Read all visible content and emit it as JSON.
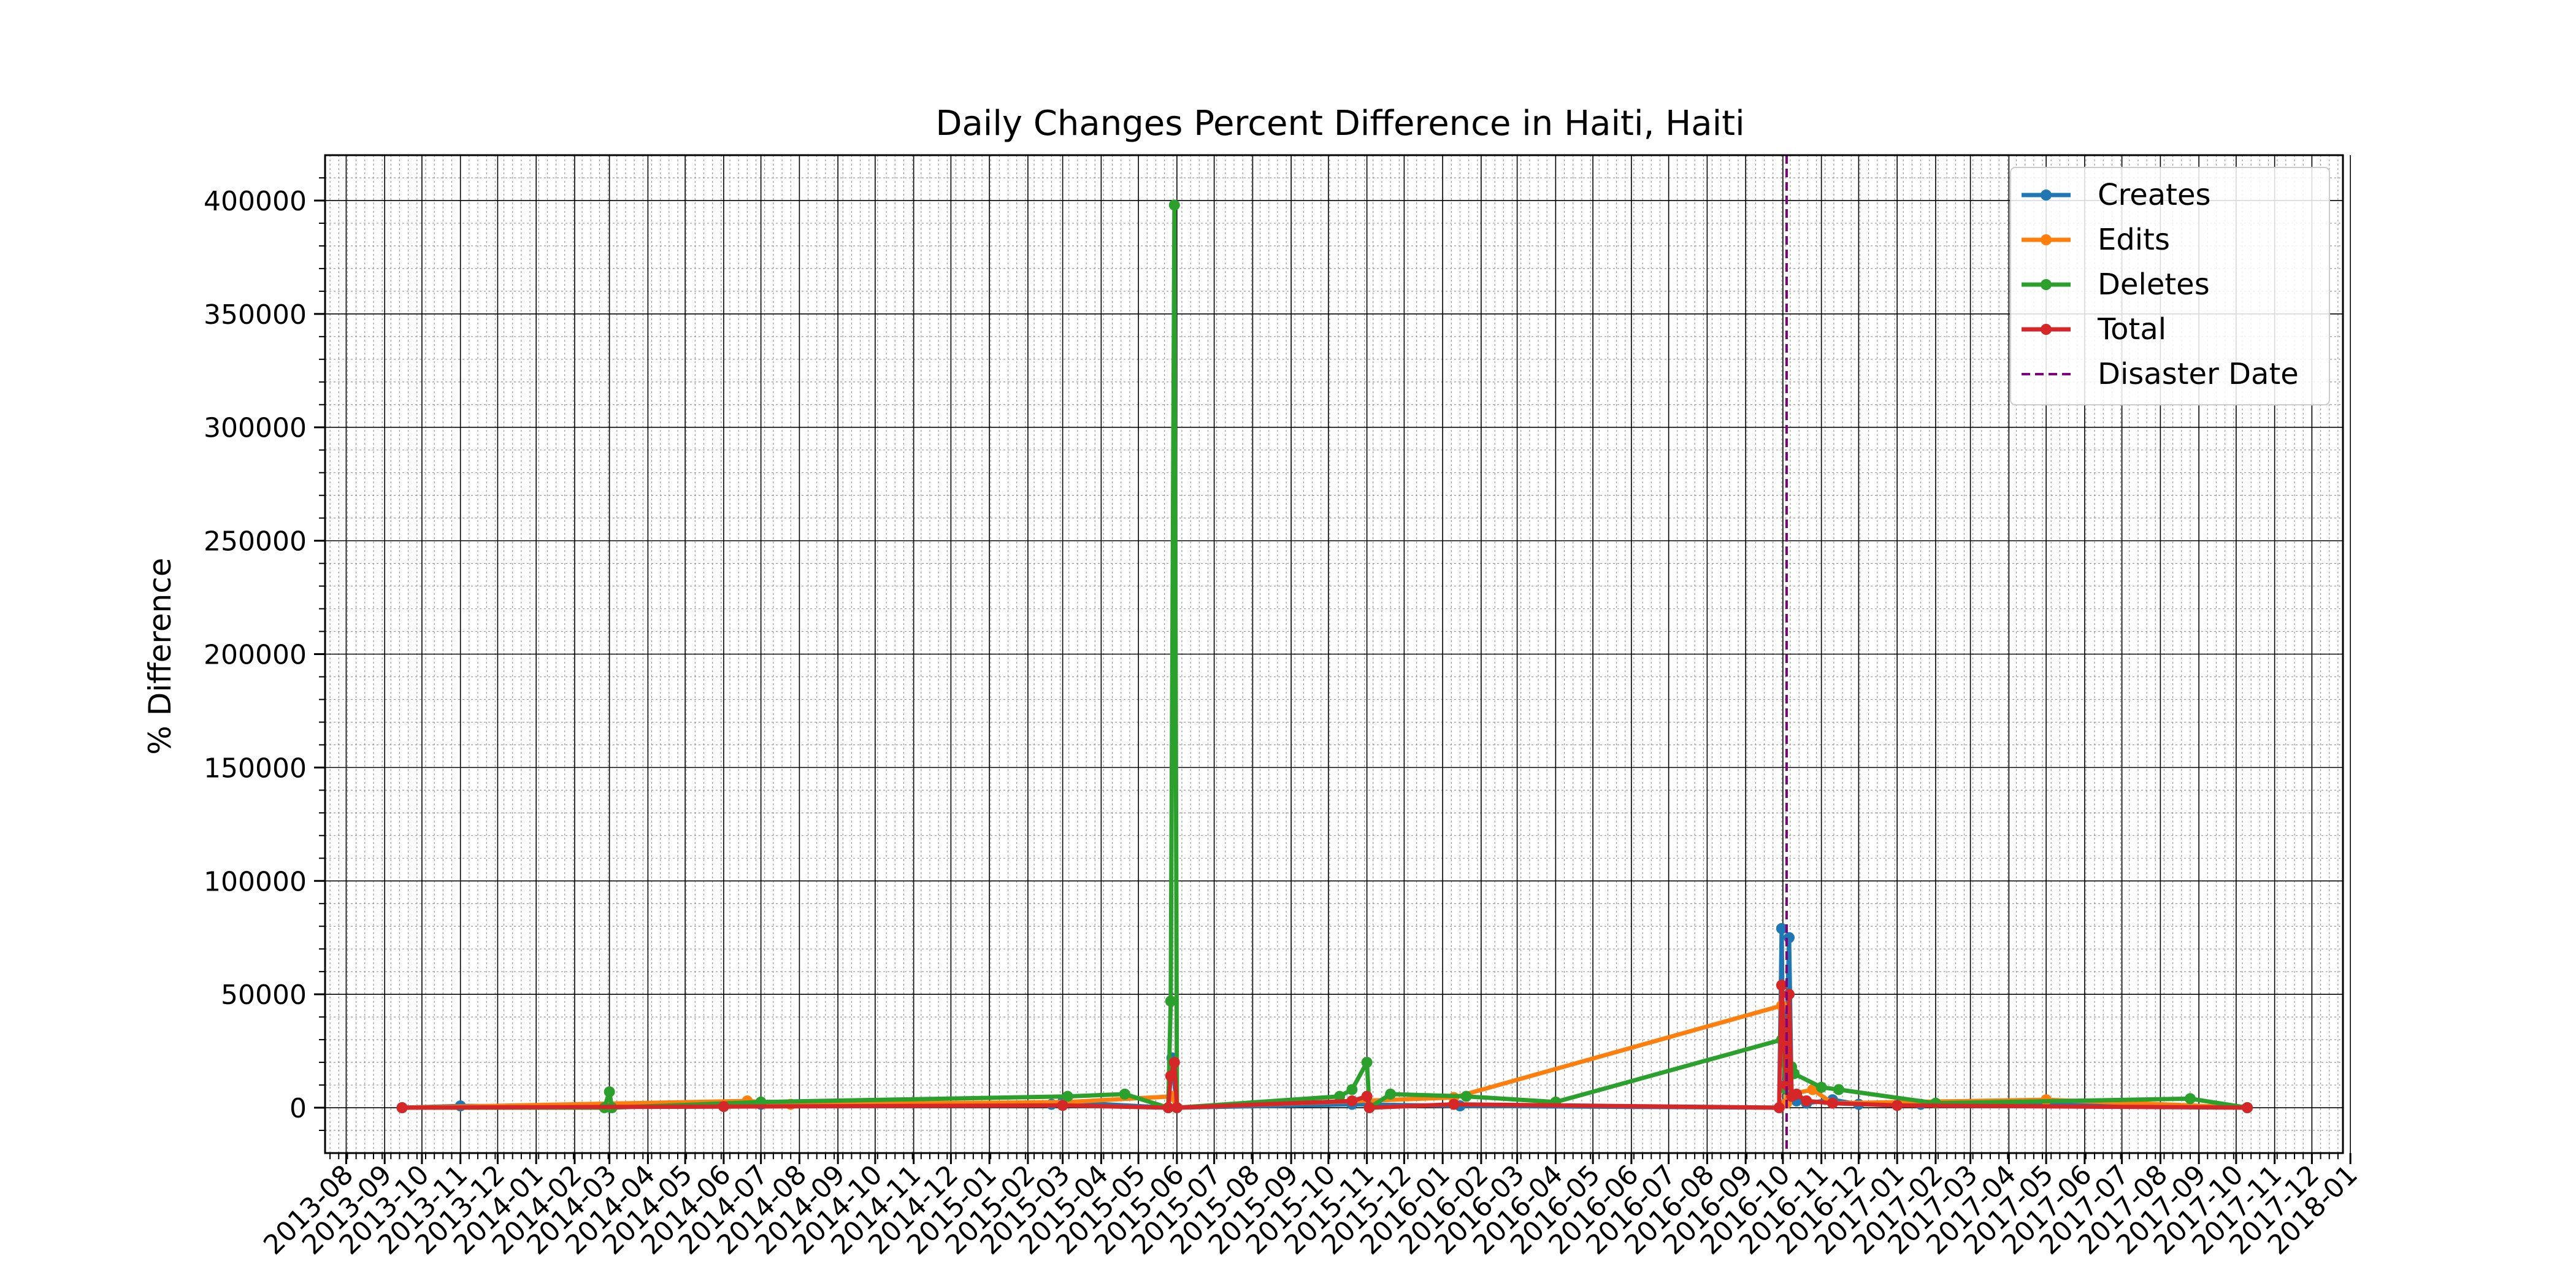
{
  "chart_data": {
    "type": "line",
    "title": "Daily Changes Percent Difference in Haiti, Haiti",
    "xlabel": "",
    "ylabel": "% Difference",
    "x_range": [
      "2013-07-15",
      "2017-12-26"
    ],
    "ylim": [
      -20000,
      420000
    ],
    "y_ticks": [
      0,
      50000,
      100000,
      150000,
      200000,
      250000,
      300000,
      350000,
      400000
    ],
    "y_tick_labels": [
      "0",
      "50000",
      "100000",
      "150000",
      "200000",
      "250000",
      "300000",
      "350000",
      "400000"
    ],
    "x_tick_labels": [
      "2013-08",
      "2013-09",
      "2013-10",
      "2013-11",
      "2013-12",
      "2014-01",
      "2014-02",
      "2014-03",
      "2014-04",
      "2014-05",
      "2014-06",
      "2014-07",
      "2014-08",
      "2014-09",
      "2014-10",
      "2014-11",
      "2014-12",
      "2015-01",
      "2015-02",
      "2015-03",
      "2015-04",
      "2015-05",
      "2015-06",
      "2015-07",
      "2015-08",
      "2015-09",
      "2015-10",
      "2015-11",
      "2015-12",
      "2016-01",
      "2016-02",
      "2016-03",
      "2016-04",
      "2016-05",
      "2016-06",
      "2016-07",
      "2016-08",
      "2016-09",
      "2016-10",
      "2016-11",
      "2016-12",
      "2017-01",
      "2017-02",
      "2017-03",
      "2017-04",
      "2017-05",
      "2017-06",
      "2017-07",
      "2017-08",
      "2017-09",
      "2017-10",
      "2017-11",
      "2017-12",
      "2018-01"
    ],
    "grid": true,
    "minor_grid": true,
    "legend_position": "top-right",
    "disaster_date": "2016-10-04",
    "disaster_label": "Disaster Date",
    "disaster_color": "#800080",
    "series": [
      {
        "name": "Creates",
        "color": "#1f77b4",
        "points": [
          [
            "2013-09-15",
            0
          ],
          [
            "2013-11-01",
            800
          ],
          [
            "2014-03-01",
            300
          ],
          [
            "2014-07-01",
            1500
          ],
          [
            "2015-02-20",
            1500
          ],
          [
            "2015-03-01",
            2500
          ],
          [
            "2015-05-25",
            0
          ],
          [
            "2015-05-28",
            22000
          ],
          [
            "2015-06-01",
            0
          ],
          [
            "2015-10-20",
            1500
          ],
          [
            "2016-01-15",
            800
          ],
          [
            "2016-09-28",
            0
          ],
          [
            "2016-09-30",
            79000
          ],
          [
            "2016-10-01",
            30000
          ],
          [
            "2016-10-03",
            10000
          ],
          [
            "2016-10-06",
            75000
          ],
          [
            "2016-10-08",
            5000
          ],
          [
            "2016-10-12",
            3000
          ],
          [
            "2016-10-20",
            2000
          ],
          [
            "2016-11-10",
            3500
          ],
          [
            "2016-12-01",
            1500
          ],
          [
            "2017-01-20",
            1500
          ],
          [
            "2017-07-01",
            2000
          ],
          [
            "2017-10-10",
            0
          ]
        ]
      },
      {
        "name": "Edits",
        "color": "#ff7f0e",
        "points": [
          [
            "2013-09-15",
            0
          ],
          [
            "2014-06-20",
            3000
          ],
          [
            "2014-07-25",
            1500
          ],
          [
            "2015-03-05",
            2500
          ],
          [
            "2015-05-28",
            5000
          ],
          [
            "2015-06-01",
            0
          ],
          [
            "2016-01-10",
            4500
          ],
          [
            "2016-09-30",
            45000
          ],
          [
            "2016-10-04",
            2000
          ],
          [
            "2016-10-08",
            6000
          ],
          [
            "2016-10-25",
            8000
          ],
          [
            "2016-11-10",
            2000
          ],
          [
            "2017-05-01",
            3500
          ],
          [
            "2017-10-10",
            0
          ]
        ]
      },
      {
        "name": "Deletes",
        "color": "#2ca02c",
        "points": [
          [
            "2013-09-15",
            0
          ],
          [
            "2014-02-25",
            0
          ],
          [
            "2014-03-01",
            7000
          ],
          [
            "2014-03-03",
            0
          ],
          [
            "2014-07-01",
            2500
          ],
          [
            "2015-03-05",
            5000
          ],
          [
            "2015-04-20",
            6000
          ],
          [
            "2015-05-25",
            0
          ],
          [
            "2015-05-27",
            47000
          ],
          [
            "2015-05-30",
            398000
          ],
          [
            "2015-06-01",
            0
          ],
          [
            "2015-10-10",
            5000
          ],
          [
            "2015-10-20",
            8000
          ],
          [
            "2015-11-01",
            20000
          ],
          [
            "2015-11-03",
            0
          ],
          [
            "2015-11-20",
            6000
          ],
          [
            "2016-01-20",
            5000
          ],
          [
            "2016-04-01",
            2500
          ],
          [
            "2016-09-30",
            30000
          ],
          [
            "2016-10-04",
            8000
          ],
          [
            "2016-10-08",
            18000
          ],
          [
            "2016-10-10",
            15000
          ],
          [
            "2016-11-01",
            9000
          ],
          [
            "2016-11-15",
            8000
          ],
          [
            "2017-02-01",
            2000
          ],
          [
            "2017-08-25",
            4000
          ],
          [
            "2017-10-10",
            0
          ]
        ]
      },
      {
        "name": "Total",
        "color": "#d62728",
        "points": [
          [
            "2013-09-15",
            0
          ],
          [
            "2014-06-01",
            500
          ],
          [
            "2015-03-01",
            1000
          ],
          [
            "2015-05-25",
            0
          ],
          [
            "2015-05-27",
            14000
          ],
          [
            "2015-05-30",
            20000
          ],
          [
            "2015-06-01",
            0
          ],
          [
            "2015-10-20",
            3000
          ],
          [
            "2015-11-01",
            5000
          ],
          [
            "2015-11-03",
            0
          ],
          [
            "2016-01-10",
            1500
          ],
          [
            "2016-09-28",
            0
          ],
          [
            "2016-09-30",
            54000
          ],
          [
            "2016-10-02",
            30000
          ],
          [
            "2016-10-04",
            10000
          ],
          [
            "2016-10-06",
            50000
          ],
          [
            "2016-10-08",
            5000
          ],
          [
            "2016-10-12",
            6000
          ],
          [
            "2016-10-20",
            3000
          ],
          [
            "2016-11-10",
            2000
          ],
          [
            "2017-01-01",
            1000
          ],
          [
            "2017-10-10",
            0
          ]
        ]
      }
    ]
  }
}
